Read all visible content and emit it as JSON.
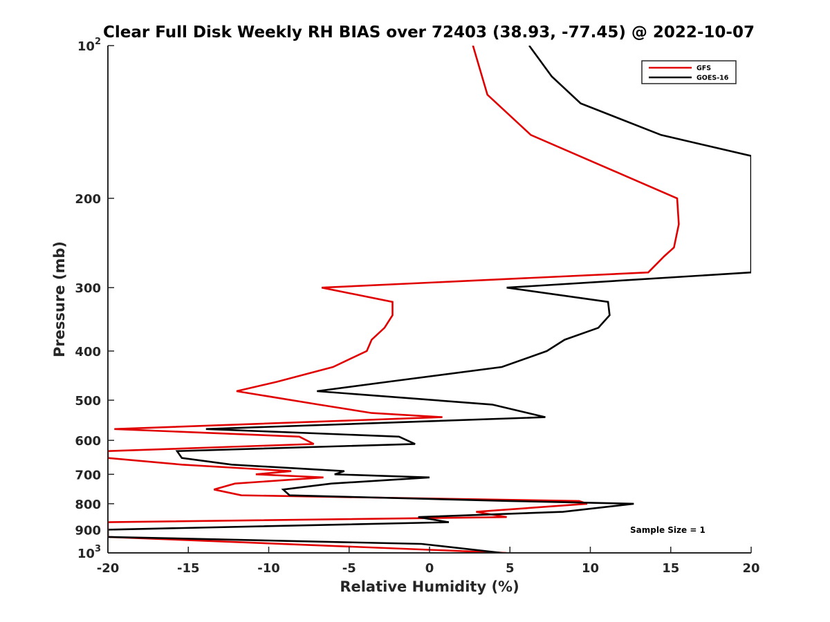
{
  "chart_data": {
    "type": "line",
    "title": "Clear Full Disk Weekly RH BIAS over 72403 (38.93, -77.45) @ 2022-10-07",
    "xlabel": "Relative Humidity (%)",
    "ylabel": "Pressure (mb)",
    "xlim": [
      -20,
      20
    ],
    "ylim": [
      100,
      1000
    ],
    "y_scale": "log",
    "y_reversed": true,
    "grid": false,
    "legend_position": "top-right",
    "x_ticks": [
      "-20",
      "-15",
      "-10",
      "-5",
      "0",
      "5",
      "10",
      "15",
      "20"
    ],
    "y_ticks": [
      {
        "value": 100,
        "label": "10",
        "sup": "2"
      },
      {
        "value": 200,
        "label": "200"
      },
      {
        "value": 300,
        "label": "300"
      },
      {
        "value": 400,
        "label": "400"
      },
      {
        "value": 500,
        "label": "500"
      },
      {
        "value": 600,
        "label": "600"
      },
      {
        "value": 700,
        "label": "700"
      },
      {
        "value": 800,
        "label": "800"
      },
      {
        "value": 900,
        "label": "900"
      },
      {
        "value": 1000,
        "label": "10",
        "sup": "3"
      }
    ],
    "annotation": "Sample Size = 1",
    "series": [
      {
        "name": "GFS",
        "color": "#e00000",
        "points": [
          [
            2.7,
            100
          ],
          [
            3.6,
            125
          ],
          [
            6.3,
            150
          ],
          [
            15.4,
            200
          ],
          [
            15.5,
            225
          ],
          [
            15.2,
            250
          ],
          [
            14.6,
            260
          ],
          [
            13.6,
            280
          ],
          [
            -6.7,
            300
          ],
          [
            -2.3,
            320
          ],
          [
            -2.3,
            340
          ],
          [
            -2.8,
            360
          ],
          [
            -3.6,
            380
          ],
          [
            -3.9,
            400
          ],
          [
            -6.0,
            430
          ],
          [
            -9.5,
            460
          ],
          [
            -12.0,
            480
          ],
          [
            -6.9,
            510
          ],
          [
            -3.6,
            530
          ],
          [
            0.8,
            540
          ],
          [
            -19.6,
            570
          ],
          [
            -8.1,
            590
          ],
          [
            -7.2,
            610
          ],
          [
            -20.0,
            630
          ],
          [
            -20.0,
            650
          ],
          [
            -15.4,
            670
          ],
          [
            -8.6,
            690
          ],
          [
            -10.8,
            700
          ],
          [
            -6.6,
            710
          ],
          [
            -12.1,
            730
          ],
          [
            -13.4,
            750
          ],
          [
            -11.7,
            770
          ],
          [
            9.3,
            790
          ],
          [
            9.8,
            800
          ],
          [
            2.9,
            830
          ],
          [
            4.8,
            850
          ],
          [
            -20.0,
            870
          ],
          [
            -20.0,
            930
          ],
          [
            4.8,
            1000
          ]
        ]
      },
      {
        "name": "GOES-16",
        "color": "#000000",
        "points": [
          [
            6.2,
            100
          ],
          [
            7.6,
            115
          ],
          [
            9.4,
            130
          ],
          [
            14.4,
            150
          ],
          [
            20.0,
            165
          ],
          [
            20.0,
            280
          ],
          [
            4.8,
            300
          ],
          [
            11.1,
            320
          ],
          [
            11.2,
            340
          ],
          [
            10.5,
            360
          ],
          [
            8.4,
            380
          ],
          [
            7.3,
            400
          ],
          [
            4.5,
            430
          ],
          [
            -2.6,
            460
          ],
          [
            -7.0,
            480
          ],
          [
            3.9,
            510
          ],
          [
            7.2,
            540
          ],
          [
            -13.9,
            570
          ],
          [
            -1.9,
            590
          ],
          [
            -0.9,
            610
          ],
          [
            -15.7,
            630
          ],
          [
            -15.4,
            650
          ],
          [
            -12.3,
            670
          ],
          [
            -5.3,
            690
          ],
          [
            -5.9,
            700
          ],
          [
            0.0,
            710
          ],
          [
            -6.1,
            730
          ],
          [
            -9.1,
            750
          ],
          [
            -8.7,
            770
          ],
          [
            5.0,
            790
          ],
          [
            12.7,
            800
          ],
          [
            8.3,
            830
          ],
          [
            -0.7,
            850
          ],
          [
            1.2,
            870
          ],
          [
            -20.0,
            900
          ],
          [
            -20.0,
            930
          ],
          [
            -0.5,
            960
          ],
          [
            4.5,
            1000
          ]
        ]
      }
    ]
  }
}
